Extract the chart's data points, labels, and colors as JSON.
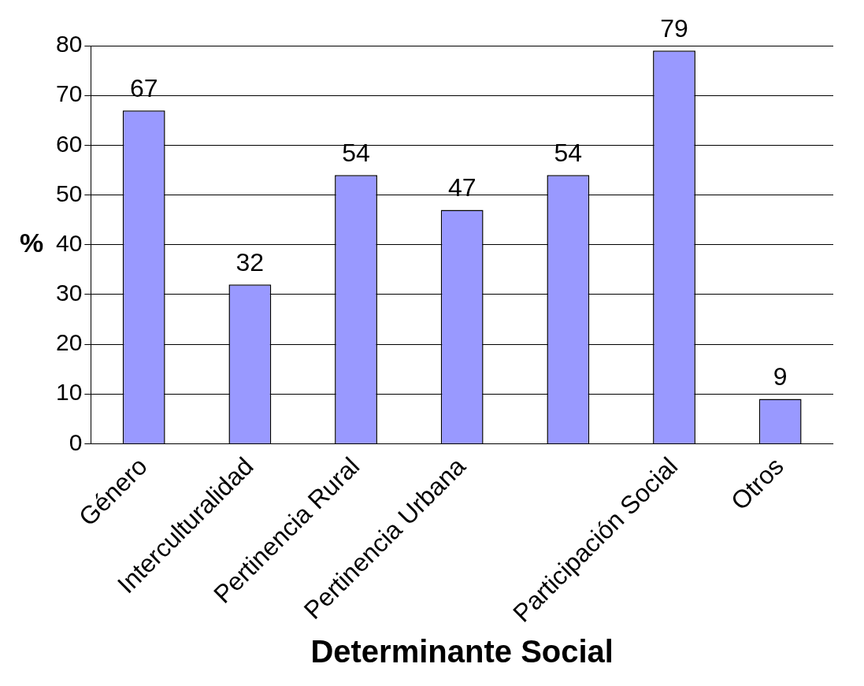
{
  "chart_data": {
    "type": "bar",
    "xlabel": "Determinante Social",
    "ylabel": "%",
    "categories": [
      "Género",
      "Interculturalidad",
      "Pertinencia Rural",
      "Pertinencia Urbana",
      null,
      "Participación Social",
      "Otros"
    ],
    "values": [
      67,
      32,
      54,
      47,
      54,
      79,
      9
    ],
    "color": "#9999ff",
    "ylim": [
      0,
      80
    ],
    "yticks": [
      0,
      10,
      20,
      30,
      40,
      50,
      60,
      70,
      80
    ],
    "grid": "y",
    "data_labels": true,
    "legend": false
  }
}
